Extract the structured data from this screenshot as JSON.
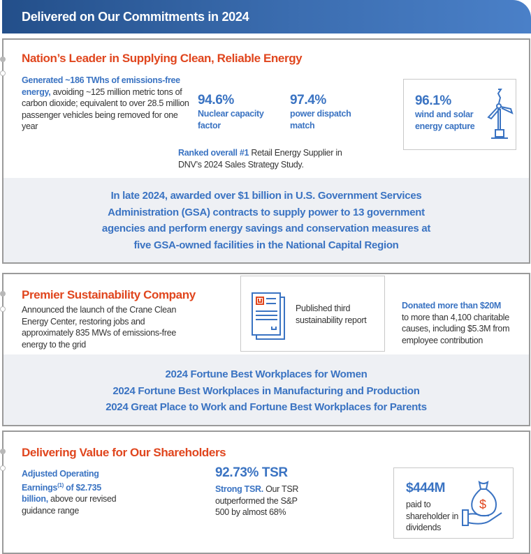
{
  "header": {
    "title": "Delivered on Our Commitments in 2024"
  },
  "section1": {
    "title": "Nation’s Leader in Supplying Clean, Reliable Energy",
    "generated_bold": "Generated ~186 TWhs of emissions-free energy,",
    "generated_rest": " avoiding ~125 million metric tons of carbon dioxide; equivalent to over 28.5 million  passenger vehicles being removed for one year",
    "stat1_value": "94.6%",
    "stat1_label": "Nuclear capacity factor",
    "stat2_value": "97.4%",
    "stat2_label": "power dispatch match",
    "stat3_value": "96.1%",
    "stat3_label": "wind and solar energy capture",
    "stat3_icon": "wind-turbine-icon",
    "ranked_bold": "Ranked overall #1",
    "ranked_rest": " Retail Energy Supplier in DNV’s 2024 Sales Strategy Study.",
    "band_lines": [
      "In late 2024, awarded over $1 billion in U.S. Government Services",
      "Administration (GSA) contracts to supply power to 13 government",
      "agencies and perform energy savings and conservation measures at",
      "five GSA-owned facilities in the National Capital Region"
    ]
  },
  "section2": {
    "title": "Premier Sustainability Company",
    "crane_text": "Announced the launch of the Crane Clean Energy Center, restoring jobs and approximately 835 MWs of emissions-free energy to the grid",
    "report_text": "Published third sustainability report",
    "report_icon": "report-document-icon",
    "donated_bold": "Donated more than $20M",
    "donated_rest": "to more than 4,100 charitable causes, including $5.3M from employee contribution",
    "band_lines": [
      "2024 Fortune Best Workplaces for Women",
      "2024 Fortune Best Workplaces in Manufacturing and Production",
      "2024 Great Place to Work and Fortune Best Workplaces for Parents"
    ]
  },
  "section3": {
    "title": "Delivering Value for Our Shareholders",
    "earnings_bold1": "Adjusted Operating Earnings",
    "earnings_sup": "(1)",
    "earnings_bold2": " of $2.735 billion,",
    "earnings_rest": " above our revised guidance range",
    "tsr_value": "92.73% TSR",
    "tsr_bold": "Strong TSR.",
    "tsr_rest": " Our TSR outperformed the S&P 500 by almost 68%",
    "dividend_value": "$444M",
    "dividend_label": "paid to shareholder in dividends",
    "dividend_icon": "money-bag-hand-icon"
  },
  "colors": {
    "accent_blue": "#3a73c2",
    "title_red": "#e0461e",
    "band_gray": "#eef0f4"
  }
}
